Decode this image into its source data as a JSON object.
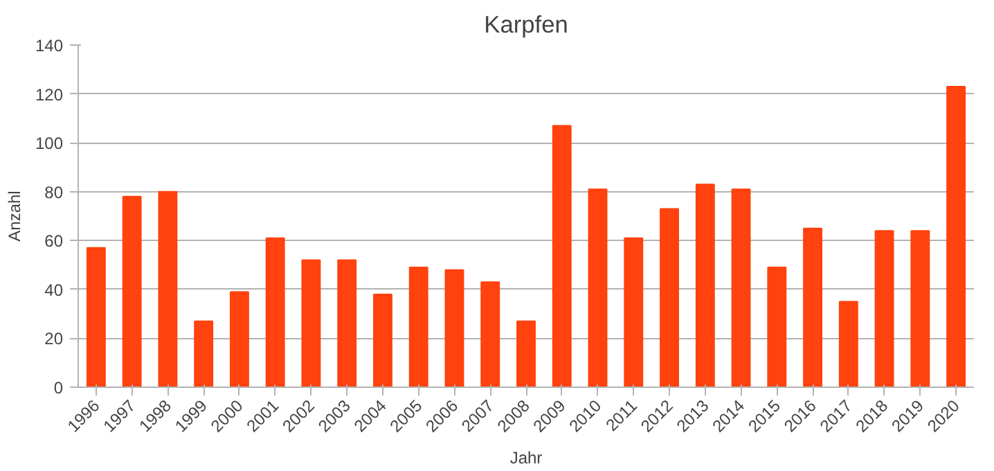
{
  "chart_data": {
    "type": "bar",
    "title": "Karpfen",
    "xlabel": "Jahr",
    "ylabel": "Anzahl",
    "categories": [
      "1996",
      "1997",
      "1998",
      "1999",
      "2000",
      "2001",
      "2002",
      "2003",
      "2004",
      "2005",
      "2006",
      "2007",
      "2008",
      "2009",
      "2010",
      "2011",
      "2012",
      "2013",
      "2014",
      "2015",
      "2016",
      "2017",
      "2018",
      "2019",
      "2020"
    ],
    "values": [
      57,
      78,
      80,
      27,
      39,
      61,
      52,
      52,
      38,
      49,
      48,
      43,
      27,
      107,
      81,
      61,
      73,
      83,
      81,
      49,
      65,
      35,
      64,
      64,
      123
    ],
    "color": "#ff420e",
    "ylim": [
      0,
      140
    ],
    "yticks": [
      0,
      20,
      40,
      60,
      80,
      100,
      120,
      140
    ],
    "grid": "y"
  }
}
